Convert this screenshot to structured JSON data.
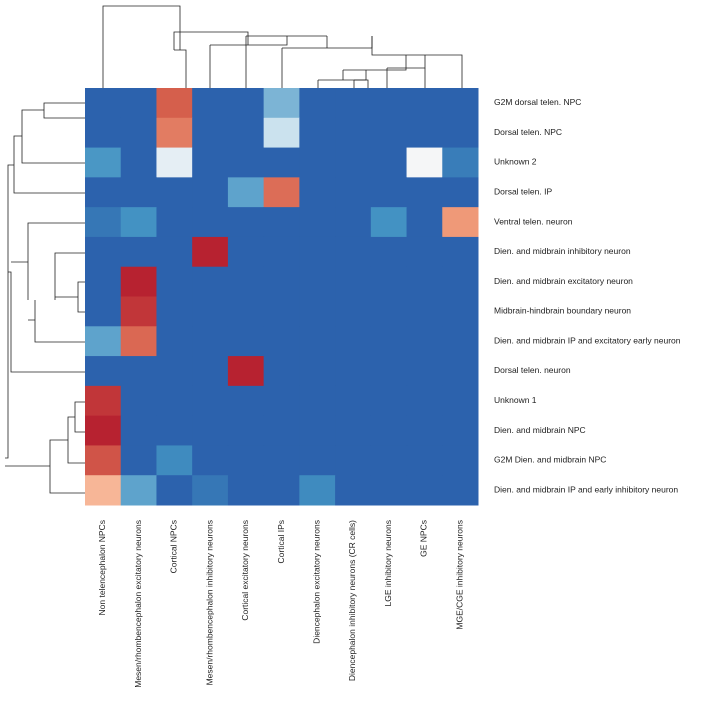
{
  "chart_data": {
    "type": "heatmap",
    "columns": [
      "Non telencephalon NPCs",
      "Mesen/rhombencephalon excitatory neurons",
      "Cortical NPCs",
      "Mesen/rhombencephalon inhibitory neurons",
      "Cortical excitatory neurons",
      "Cortical IPs",
      "Diencephalon excitatory neurons",
      "Diencephalon inhibitory neurons (CR cells)",
      "LGE inhibitory neurons",
      "GE NPCs",
      "MGE/CGE inhibitory neurons"
    ],
    "rows": [
      "G2M dorsal telen. NPC",
      "Dorsal telen. NPC",
      "Unknown 2",
      "Dorsal telen. IP",
      "Ventral telen. neuron",
      "Dien. and midbrain inhibitory neuron",
      "Dien. and midbrain excitatory neuron",
      "Midbrain-hindbrain boundary neuron",
      "Dien. and midbrain IP and excitatory early neuron",
      "Dorsal telen. neuron",
      "Unknown 1",
      "Dien. and midbrain NPC",
      "G2M Dien. and midbrain NPC",
      "Dien. and midbrain IP and early inhibitory neuron"
    ],
    "values": [
      [
        0,
        0,
        0.86,
        0,
        0,
        0.2,
        0,
        0,
        0,
        0,
        0
      ],
      [
        0,
        0,
        0.8,
        0,
        0,
        0.28,
        0,
        0,
        0,
        0,
        0
      ],
      [
        0.15,
        0,
        0.36,
        0,
        0,
        0,
        0,
        0,
        0,
        0.42,
        0.08
      ],
      [
        0,
        0,
        0,
        0,
        0.17,
        0.83,
        0,
        0,
        0,
        0,
        0
      ],
      [
        0.06,
        0.14,
        0,
        0,
        0,
        0,
        0,
        0,
        0.14,
        0,
        0.74
      ],
      [
        0,
        0,
        0,
        0.98,
        0,
        0,
        0,
        0,
        0,
        0,
        0
      ],
      [
        0,
        0.98,
        0,
        0,
        0,
        0,
        0,
        0,
        0,
        0,
        0
      ],
      [
        0,
        0.94,
        0,
        0,
        0,
        0,
        0,
        0,
        0,
        0,
        0
      ],
      [
        0.17,
        0.84,
        0,
        0,
        0,
        0,
        0,
        0,
        0,
        0,
        0
      ],
      [
        0,
        0,
        0,
        0,
        0.98,
        0,
        0,
        0,
        0,
        0,
        0
      ],
      [
        0.94,
        0,
        0,
        0,
        0,
        0,
        0,
        0,
        0,
        0,
        0
      ],
      [
        0.98,
        0,
        0,
        0,
        0,
        0,
        0,
        0,
        0,
        0,
        0
      ],
      [
        0.88,
        0,
        0.12,
        0,
        0,
        0,
        0,
        0,
        0,
        0,
        0
      ],
      [
        0.67,
        0.17,
        0,
        0.06,
        0,
        0,
        0.12,
        0,
        0,
        0,
        0
      ]
    ],
    "zlim": [
      0,
      1
    ],
    "colormap": [
      "#2c62ad",
      "#4393c3",
      "#d1e5f0",
      "#f7f7f7",
      "#fddbc7",
      "#f4a582",
      "#d6604d",
      "#b2182b"
    ]
  }
}
